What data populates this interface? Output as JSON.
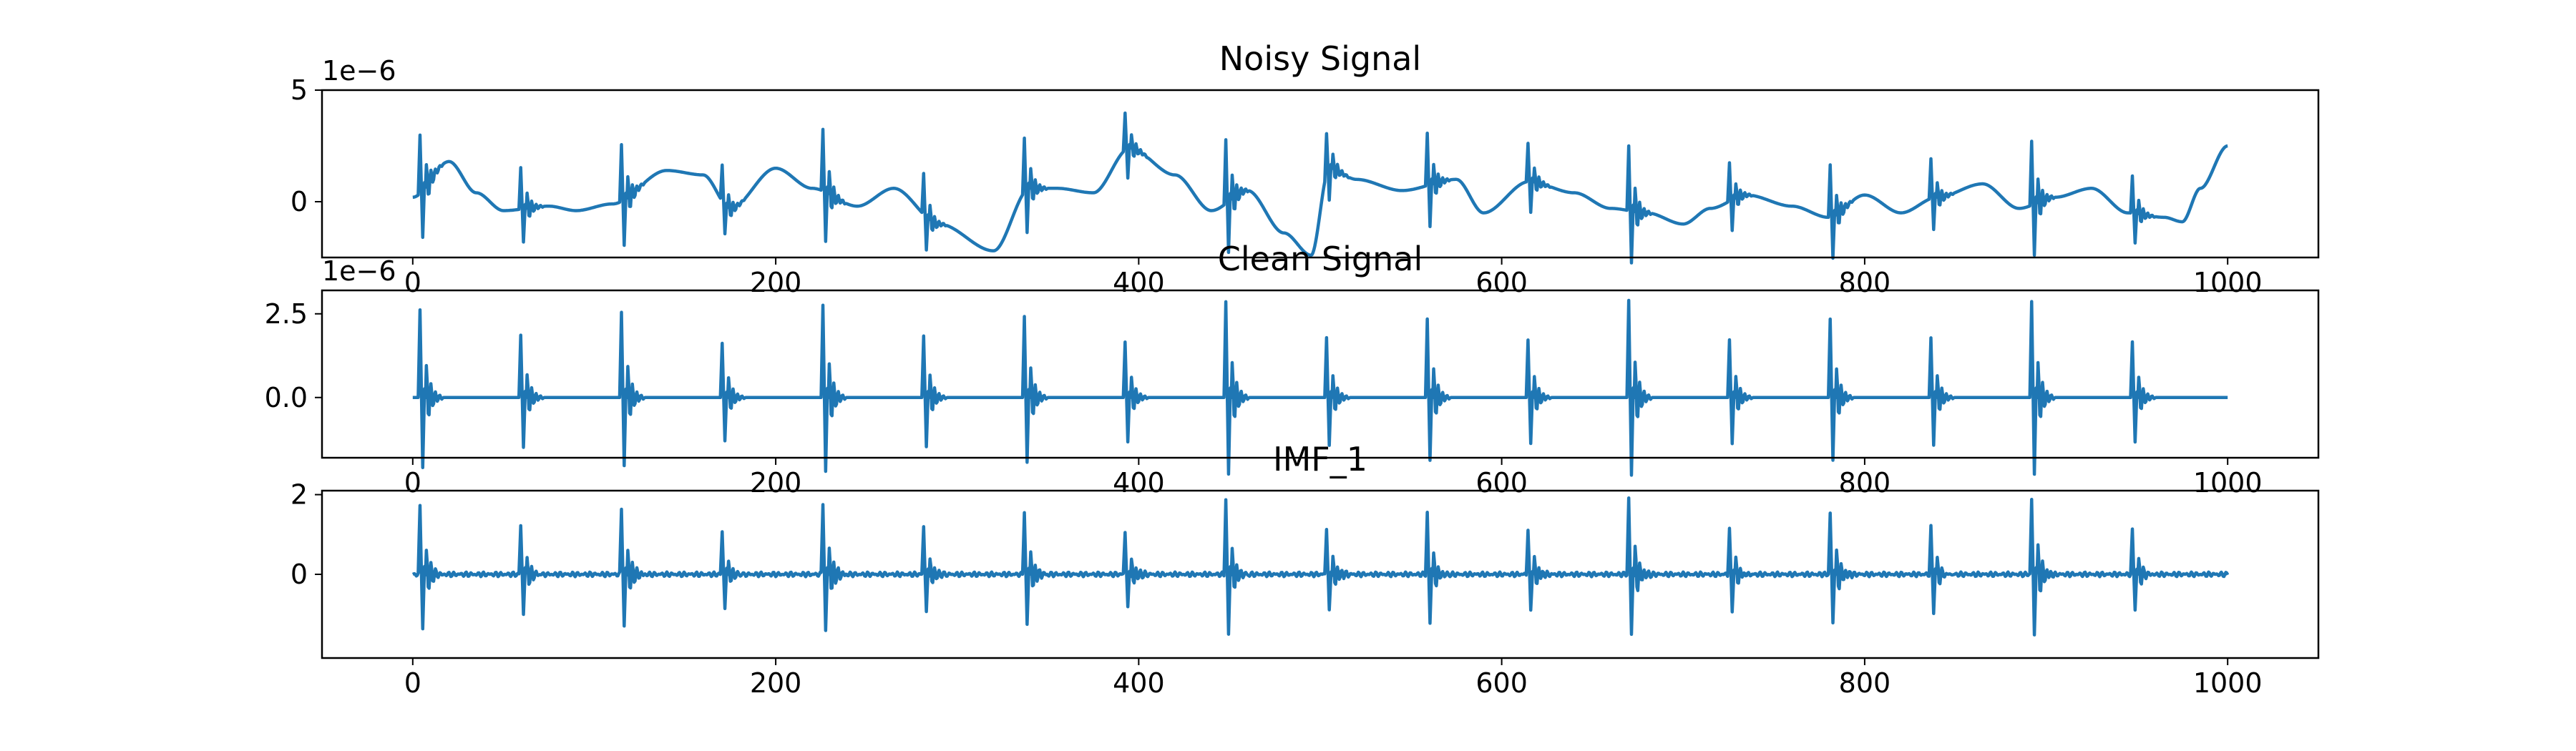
{
  "figure": {
    "line_color": "#1f77b4",
    "axes_color": "#000000"
  },
  "chart_data": [
    {
      "type": "line",
      "title": "Noisy Signal",
      "xlabel": "",
      "ylabel": "",
      "xlim": [
        -50,
        1050
      ],
      "ylim": [
        -2.5,
        5
      ],
      "y_multiplier": "1e−6",
      "xticks": [
        0,
        200,
        400,
        600,
        800,
        1000
      ],
      "xtick_labels": [
        "0",
        "200",
        "400",
        "600",
        "800",
        "1000"
      ],
      "yticks": [
        0,
        5
      ],
      "ytick_labels": [
        "0",
        "5"
      ],
      "grid": false,
      "legend": "none",
      "series": [
        {
          "generator": "ecg_plus_drift",
          "beat_period": 55.5,
          "first_beat": 3,
          "peak": 2.9,
          "drift_points": [
            [
              0,
              0.2
            ],
            [
              20,
              1.8
            ],
            [
              35,
              0.4
            ],
            [
              50,
              -0.4
            ],
            [
              75,
              -0.2
            ],
            [
              90,
              -0.4
            ],
            [
              110,
              -0.1
            ],
            [
              140,
              1.4
            ],
            [
              160,
              1.2
            ],
            [
              175,
              -0.3
            ],
            [
              200,
              1.5
            ],
            [
              220,
              0.6
            ],
            [
              245,
              -0.2
            ],
            [
              265,
              0.6
            ],
            [
              290,
              -1.0
            ],
            [
              320,
              -2.2
            ],
            [
              340,
              0.6
            ],
            [
              355,
              0.6
            ],
            [
              375,
              0.4
            ],
            [
              395,
              2.4
            ],
            [
              420,
              1.2
            ],
            [
              440,
              -0.4
            ],
            [
              460,
              0.5
            ],
            [
              480,
              -1.4
            ],
            [
              495,
              -2.4
            ],
            [
              505,
              1.5
            ],
            [
              520,
              1.0
            ],
            [
              545,
              0.5
            ],
            [
              575,
              1.0
            ],
            [
              590,
              -0.5
            ],
            [
              615,
              0.9
            ],
            [
              640,
              0.4
            ],
            [
              660,
              -0.3
            ],
            [
              680,
              -0.5
            ],
            [
              700,
              -1.0
            ],
            [
              715,
              -0.3
            ],
            [
              735,
              0.3
            ],
            [
              760,
              -0.2
            ],
            [
              780,
              -0.7
            ],
            [
              800,
              0.3
            ],
            [
              820,
              -0.5
            ],
            [
              840,
              0.2
            ],
            [
              865,
              0.8
            ],
            [
              885,
              -0.3
            ],
            [
              905,
              0.2
            ],
            [
              925,
              0.6
            ],
            [
              945,
              -0.5
            ],
            [
              965,
              -0.7
            ],
            [
              975,
              -0.9
            ],
            [
              985,
              0.6
            ],
            [
              1000,
              2.5
            ]
          ]
        }
      ]
    },
    {
      "type": "line",
      "title": "Clean Signal",
      "xlabel": "",
      "ylabel": "",
      "xlim": [
        -50,
        1050
      ],
      "ylim": [
        -1.8,
        3.2
      ],
      "y_multiplier": "1e−6",
      "xticks": [
        0,
        200,
        400,
        600,
        800,
        1000
      ],
      "xtick_labels": [
        "0",
        "200",
        "400",
        "600",
        "800",
        "1000"
      ],
      "yticks": [
        0,
        2.5
      ],
      "ytick_labels": [
        "0.0",
        "2.5"
      ],
      "grid": false,
      "legend": "none",
      "series": [
        {
          "generator": "ecg",
          "beat_period": 55.5,
          "first_beat": 3,
          "peak": 2.9
        }
      ]
    },
    {
      "type": "line",
      "title": "IMF_1",
      "xlabel": "",
      "ylabel": "",
      "xlim": [
        -50,
        1050
      ],
      "ylim": [
        -2.1,
        2.1
      ],
      "xticks": [
        0,
        200,
        400,
        600,
        800,
        1000
      ],
      "xtick_labels": [
        "0",
        "200",
        "400",
        "600",
        "800",
        "1000"
      ],
      "yticks": [
        0,
        2
      ],
      "ytick_labels": [
        "0",
        "2"
      ],
      "grid": false,
      "legend": "none",
      "series": [
        {
          "generator": "imf",
          "beat_period": 55.5,
          "first_beat": 3,
          "peak": 1.9
        }
      ]
    }
  ]
}
